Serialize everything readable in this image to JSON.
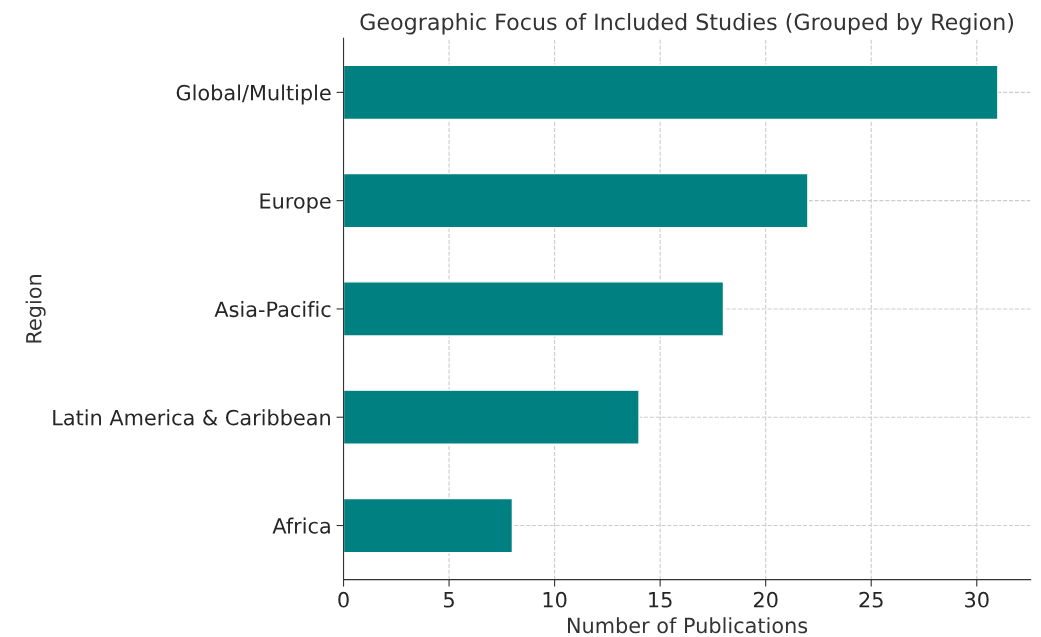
{
  "chart_data": {
    "type": "bar",
    "orientation": "horizontal",
    "title": "Geographic Focus of Included Studies (Grouped by Region)",
    "xlabel": "Number of Publications",
    "ylabel": "Region",
    "categories": [
      "Global/Multiple",
      "Europe",
      "Asia-Pacific",
      "Latin America & Caribbean",
      "Africa"
    ],
    "values": [
      31,
      22,
      18,
      14,
      8
    ],
    "color": "#008080",
    "xlim": [
      0,
      32.55
    ],
    "xticks": [
      0,
      5,
      10,
      15,
      20,
      25,
      30
    ],
    "grid": true
  }
}
